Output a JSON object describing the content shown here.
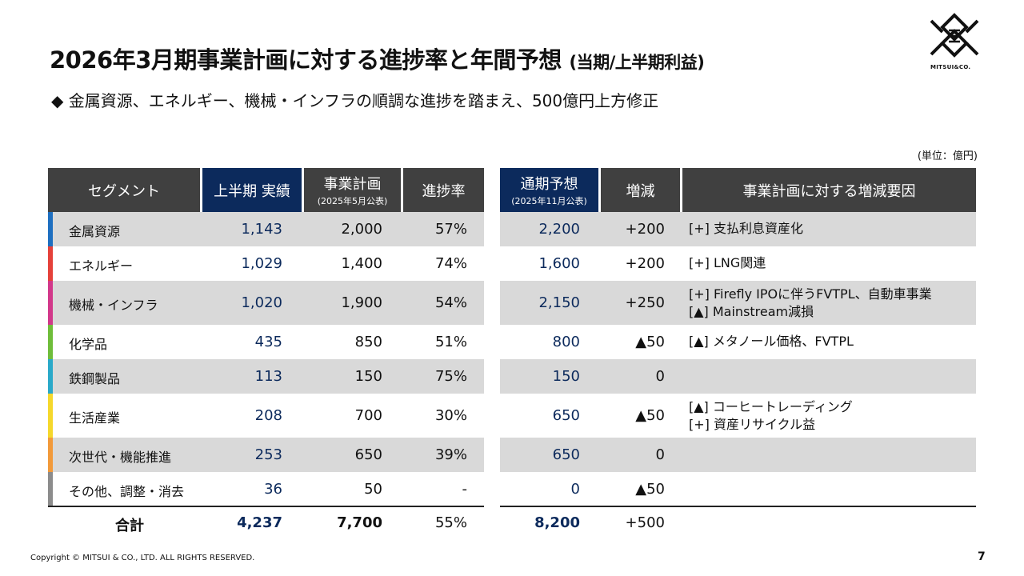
{
  "title": {
    "main": "2026年3月期事業計画に対する進捗率と年間予想",
    "suffix": "(当期/上半期利益)"
  },
  "subtitle": "◆ 金属資源、エネルギー、機械・インフラの順調な進捗を踏まえ、500億円上方修正",
  "unit": "(単位：億円)",
  "logo": {
    "text": "MITSUI&CO."
  },
  "headers": {
    "segment": "セグメント",
    "h1_actual": "上半期 実績",
    "plan": "事業計画",
    "plan_note": "(2025年5月公表)",
    "progress": "進捗率",
    "forecast": "通期予想",
    "forecast_note": "(2025年11月公表)",
    "change": "増減",
    "reasons": "事業計画に対する増減要因"
  },
  "colors": {
    "metals": "#1e6fc0",
    "energy": "#e5413a",
    "machinery": "#d2388a",
    "chemicals": "#6fbd3a",
    "iron_steel": "#2aa9c9",
    "lifestyle": "#f5d82c",
    "innovation": "#f29a3a",
    "others": "#8c8c8c"
  },
  "rows": [
    {
      "segment": "金属資源",
      "actual": "1,143",
      "plan": "2,000",
      "progress": "57%",
      "forecast": "2,200",
      "change": "+200",
      "reasons": [
        "[+] 支払利息資産化"
      ]
    },
    {
      "segment": "エネルギー",
      "actual": "1,029",
      "plan": "1,400",
      "progress": "74%",
      "forecast": "1,600",
      "change": "+200",
      "reasons": [
        "[+] LNG関連"
      ]
    },
    {
      "segment": "機械・インフラ",
      "actual": "1,020",
      "plan": "1,900",
      "progress": "54%",
      "forecast": "2,150",
      "change": "+250",
      "reasons": [
        "[+] Firefly IPOに伴うFVTPL、自動車事業",
        "[▲] Mainstream減損"
      ]
    },
    {
      "segment": "化学品",
      "actual": "435",
      "plan": "850",
      "progress": "51%",
      "forecast": "800",
      "change": "▲50",
      "reasons": [
        "[▲] メタノール価格、FVTPL"
      ]
    },
    {
      "segment": "鉄鋼製品",
      "actual": "113",
      "plan": "150",
      "progress": "75%",
      "forecast": "150",
      "change": "0",
      "reasons": []
    },
    {
      "segment": "生活産業",
      "actual": "208",
      "plan": "700",
      "progress": "30%",
      "forecast": "650",
      "change": "▲50",
      "reasons": [
        "[▲] コーヒートレーディング",
        "[+] 資産リサイクル益"
      ]
    },
    {
      "segment": "次世代・機能推進",
      "actual": "253",
      "plan": "650",
      "progress": "39%",
      "forecast": "650",
      "change": "0",
      "reasons": []
    },
    {
      "segment": "その他、調整・消去",
      "actual": "36",
      "plan": "50",
      "progress": "-",
      "forecast": "0",
      "change": "▲50",
      "reasons": []
    }
  ],
  "total": {
    "label": "合計",
    "actual": "4,237",
    "plan": "7,700",
    "progress": "55%",
    "forecast": "8,200",
    "change": "+500"
  },
  "footer": "Copyright © MITSUI & CO., LTD. ALL RIGHTS RESERVED.",
  "page_number": "7"
}
